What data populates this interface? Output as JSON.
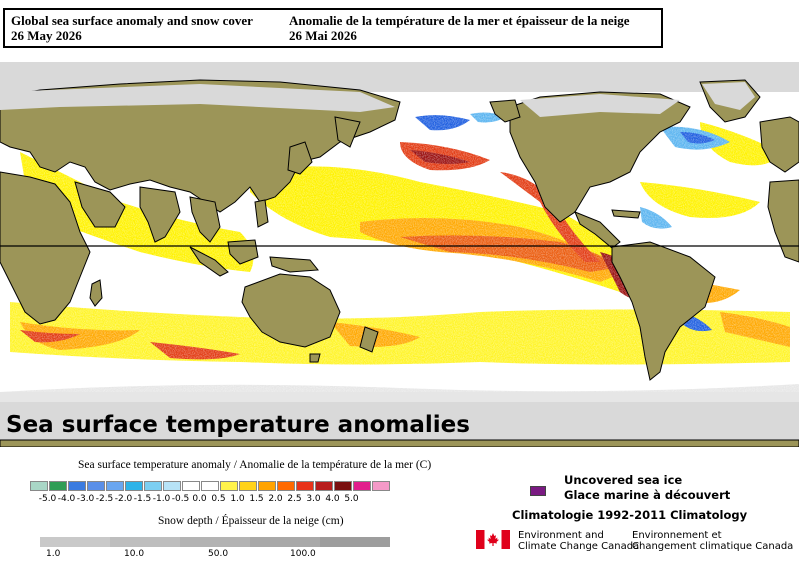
{
  "header": {
    "title_en": "Global sea surface anomaly and snow cover",
    "date_en": "26 May 2026",
    "title_fr": "Anomalie de la température de la mer et épaisseur de la neige",
    "date_fr": "26 Mai 2026"
  },
  "map": {
    "overlay_title": "Sea surface temperature anomalies",
    "colors": {
      "land": "#9c9558",
      "snow": "#d9d9d9",
      "ocean_neutral": "#ffffff",
      "warm_yellow": "#fff200",
      "warm_orange": "#ffa800",
      "warm_red": "#e23a12",
      "warm_darkred": "#9a1010",
      "cool_lightblue": "#5ab4f0",
      "cool_blue": "#1e5ee0"
    }
  },
  "sst_legend": {
    "title": "Sea surface temperature anomaly / Anomalie de la température de la mer (C)",
    "swatches": [
      "#a9d6c6",
      "#2f9d55",
      "#3a7be0",
      "#5a8fe8",
      "#6aa6f0",
      "#2eb3e8",
      "#7ccff2",
      "#b7e3f7",
      "#ffffff",
      "#ffffff",
      "#fff34c",
      "#ffd21a",
      "#ffa300",
      "#ff6a00",
      "#e8331a",
      "#b81c1c",
      "#7a0f0f",
      "#e21e8c",
      "#f49ac8"
    ],
    "labels": [
      "-5.0",
      "-4.0",
      "-3.0",
      "-2.5",
      "-2.0",
      "-1.5",
      "-1.0",
      "-0.5",
      "0.0",
      "0.5",
      "1.0",
      "1.5",
      "2.0",
      "2.5",
      "3.0",
      "4.0",
      "5.0"
    ]
  },
  "snow_legend": {
    "title": "Snow depth / Épaisseur de la neige (cm)",
    "shades": [
      "#c9c9c9",
      "#bebebe",
      "#b3b3b3",
      "#a8a8a8",
      "#9d9d9d"
    ],
    "labels": [
      "1.0",
      "10.0",
      "50.0",
      "100.0"
    ]
  },
  "ice_legend": {
    "line_en": "Uncovered sea ice",
    "line_fr": "Glace marine à découvert",
    "color": "#7a1a82"
  },
  "climatology": "Climatologie 1992-2011 Climatology",
  "agency": {
    "en_line1": "Environment and",
    "en_line2": "Climate Change Canada",
    "fr_line1": "Environnement et",
    "fr_line2": "Changement climatique Canada"
  }
}
